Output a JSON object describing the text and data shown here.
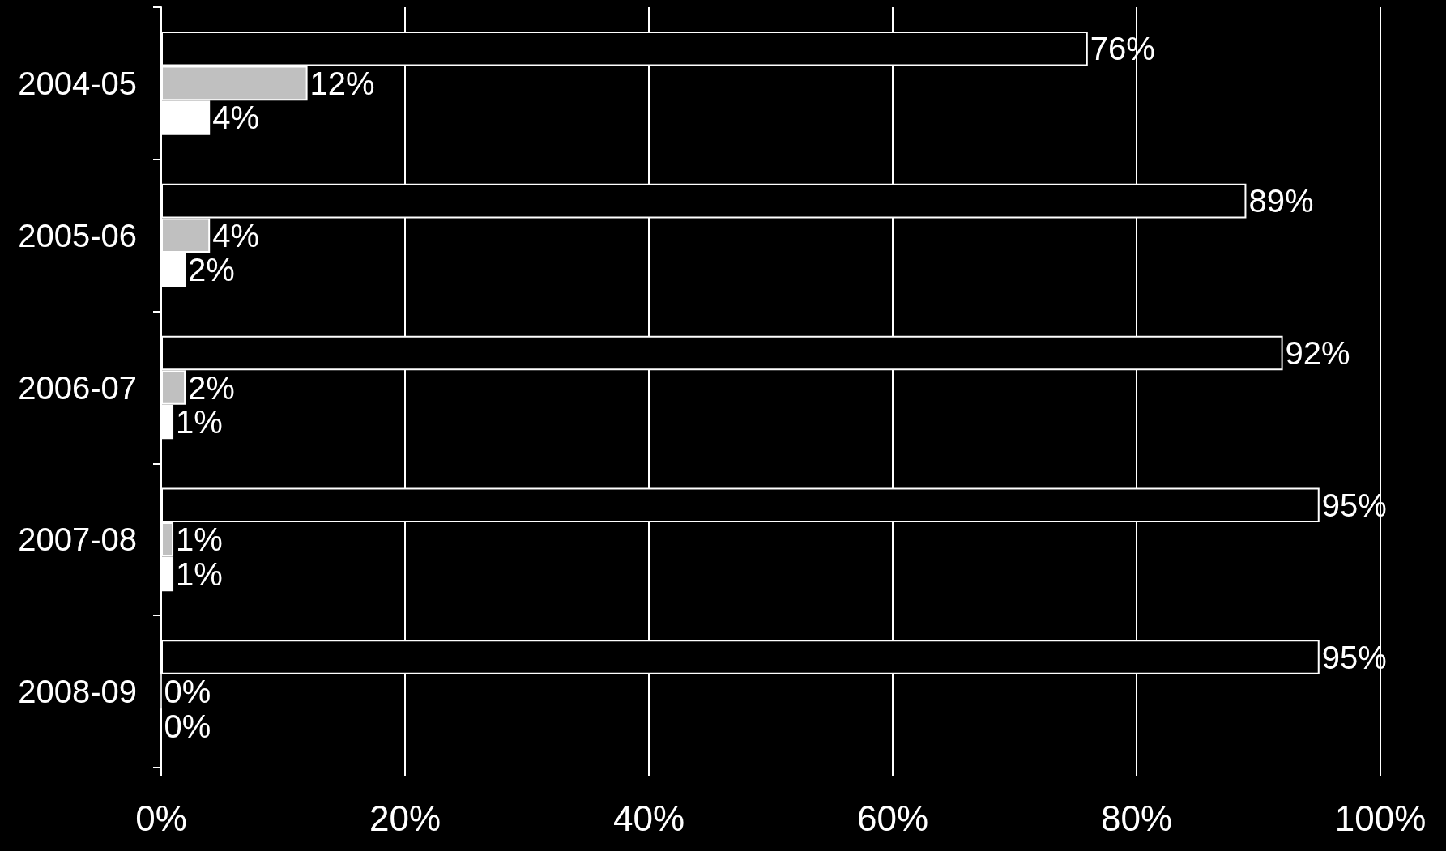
{
  "chart_data": {
    "type": "bar",
    "orientation": "horizontal",
    "categories": [
      "2004-05",
      "2005-06",
      "2006-07",
      "2007-08",
      "2008-09"
    ],
    "series": [
      {
        "color": "#000000",
        "values": [
          76,
          89,
          92,
          95,
          95
        ],
        "value_labels": [
          "76%",
          "89%",
          "92%",
          "95%",
          "95%"
        ]
      },
      {
        "color": "#c0c0c0",
        "values": [
          12,
          4,
          2,
          1,
          0
        ],
        "value_labels": [
          "12%",
          "4%",
          "2%",
          "1%",
          "0%"
        ]
      },
      {
        "color": "#ffffff",
        "values": [
          4,
          2,
          1,
          1,
          0
        ],
        "value_labels": [
          "4%",
          "2%",
          "1%",
          "1%",
          "0%"
        ]
      }
    ],
    "xlim": [
      0,
      100
    ],
    "xticks": [
      {
        "value": 0,
        "label": "0%"
      },
      {
        "value": 20,
        "label": "20%"
      },
      {
        "value": 40,
        "label": "40%"
      },
      {
        "value": 60,
        "label": "60%"
      },
      {
        "value": 80,
        "label": "80%"
      },
      {
        "value": 100,
        "label": "100%"
      }
    ],
    "grid": "x"
  }
}
